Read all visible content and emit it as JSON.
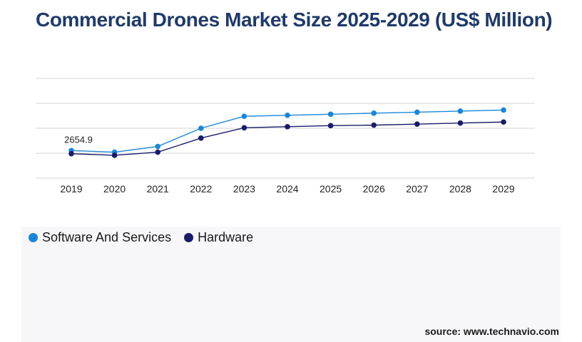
{
  "title": "Commercial Drones Market Size 2025-2029 (US$ Million)",
  "source": "source: www.technavio.com",
  "chart_data": {
    "type": "line",
    "title": "Commercial Drones Market Size 2025-2029 (US$ Million)",
    "xlabel": "",
    "ylabel": "",
    "categories": [
      "2019",
      "2020",
      "2021",
      "2022",
      "2023",
      "2024",
      "2025",
      "2026",
      "2027",
      "2028",
      "2029"
    ],
    "grid": true,
    "legend_position": "bottom-left",
    "ylim": [
      0,
      12000
    ],
    "series": [
      {
        "name": "Software And Services",
        "color": "#1a86d9",
        "values": [
          2654.9,
          2500,
          3050,
          4800,
          5950,
          6050,
          6150,
          6250,
          6350,
          6450,
          6550
        ]
      },
      {
        "name": "Hardware",
        "color": "#1b1b6b",
        "values": [
          2350,
          2200,
          2500,
          3850,
          4850,
          4950,
          5050,
          5100,
          5200,
          5300,
          5400
        ]
      }
    ],
    "annotations": [
      {
        "series": 0,
        "index": 0,
        "text": "2654.9"
      }
    ]
  }
}
